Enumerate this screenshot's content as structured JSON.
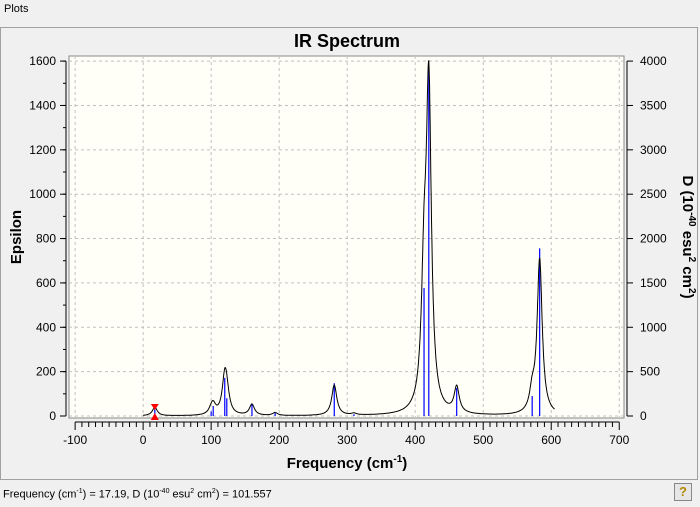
{
  "window": {
    "title": "Plots"
  },
  "status": {
    "freq_label": "Frequency (cm",
    "freq_exp": "-1",
    "freq_value": ") = 17.19, D (10",
    "d_exp": "-40",
    "d_unit": " esu",
    "sq": "2",
    "cm": " cm",
    "d_value": ") = 101.557",
    "help_icon": "?"
  },
  "chart_data": {
    "type": "line",
    "title": "IR Spectrum",
    "xlabel": "Frequency (cm",
    "xlabel_sup": "-1",
    "xlabel_end": ")",
    "ylabel": "Epsilon",
    "y2label_pre": "D (10",
    "y2label_exp1": "-40",
    "y2label_mid": " esu",
    "y2label_exp2": "2",
    "y2label_mid2": " cm",
    "y2label_exp3": "2",
    "y2label_end": ")",
    "xlim": [
      -109,
      707
    ],
    "ylim": [
      -9,
      1623
    ],
    "y2lim": [
      -22.5,
      4057.5
    ],
    "xticks": [
      -100,
      0,
      100,
      200,
      300,
      400,
      500,
      600,
      700
    ],
    "yticks": [
      0,
      200,
      400,
      600,
      800,
      1000,
      1200,
      1400,
      1600
    ],
    "y2ticks": [
      0,
      500,
      1000,
      1500,
      2000,
      2500,
      3000,
      3500,
      4000
    ],
    "grid": true,
    "curve_range": [
      0,
      605
    ],
    "lorentz_hwhm": 4.5,
    "lorentz_scale": 0.37,
    "sticks": [
      {
        "x": 17.19,
        "d": 101.557
      },
      {
        "x": 100,
        "d": 50
      },
      {
        "x": 103,
        "d": 113
      },
      {
        "x": 120,
        "d": 430
      },
      {
        "x": 123,
        "d": 200
      },
      {
        "x": 160,
        "d": 135
      },
      {
        "x": 194,
        "d": 35
      },
      {
        "x": 281,
        "d": 370
      },
      {
        "x": 310,
        "d": 20
      },
      {
        "x": 413,
        "d": 1442
      },
      {
        "x": 420,
        "d": 3900
      },
      {
        "x": 461,
        "d": 315
      },
      {
        "x": 572,
        "d": 225
      },
      {
        "x": 583,
        "d": 1890
      }
    ],
    "marker_x": 17.19,
    "colors": {
      "curve": "#000000",
      "sticks": "#0000ff",
      "marker": "#ff0000",
      "plot_bg": "#fffff8",
      "grid": "#c0c0c0"
    }
  }
}
